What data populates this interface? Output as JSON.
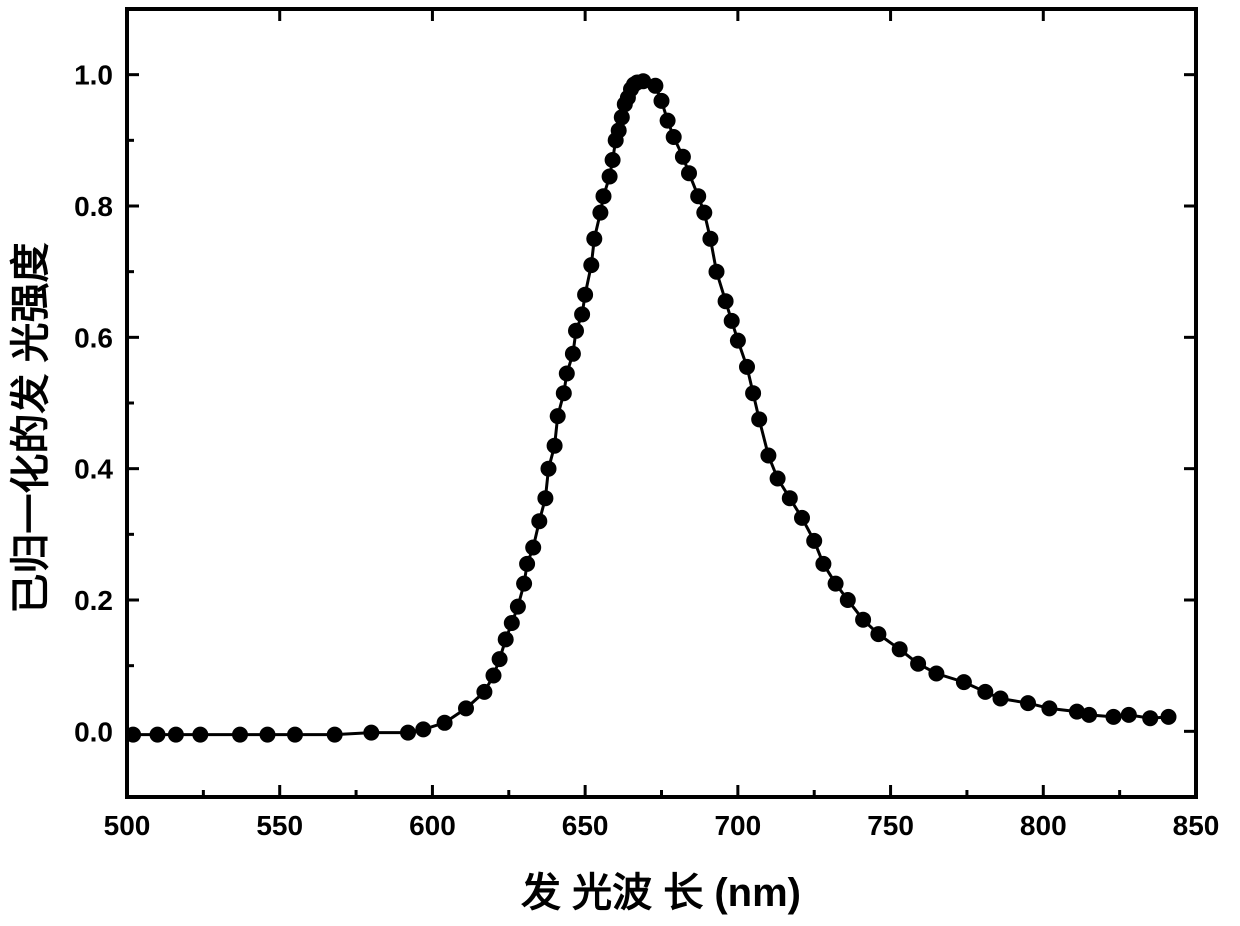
{
  "chart_data": {
    "type": "line",
    "title": "",
    "xlabel": "发 光波 长 (nm)",
    "ylabel": "已归一化的发 光强度",
    "xlim": [
      500,
      850
    ],
    "ylim": [
      -0.1,
      1.1
    ],
    "x_ticks": [
      "500",
      "550",
      "600",
      "650",
      "700",
      "750",
      "800",
      "850"
    ],
    "y_ticks": [
      "0.0",
      "0.2",
      "0.4",
      "0.6",
      "0.8",
      "1.0"
    ],
    "x_tick_values": [
      500,
      550,
      600,
      650,
      700,
      750,
      800,
      850
    ],
    "y_tick_values": [
      0.0,
      0.2,
      0.4,
      0.6,
      0.8,
      1.0
    ],
    "grid": false,
    "colors": {
      "line": "#000000",
      "marker": "#000000"
    },
    "series": [
      {
        "marker": "filled-circle",
        "x": [
          502,
          510,
          516,
          524,
          537,
          546,
          555,
          568,
          580,
          592,
          597,
          604,
          611,
          617,
          620,
          622,
          624,
          626,
          628,
          630,
          631,
          633,
          635,
          637,
          638,
          640,
          641,
          643,
          644,
          646,
          647,
          649,
          650,
          652,
          653,
          655,
          656,
          658,
          659,
          660,
          661,
          662,
          663,
          664,
          665,
          666,
          667,
          669,
          673,
          675,
          677,
          679,
          682,
          684,
          687,
          689,
          691,
          693,
          696,
          698,
          700,
          703,
          705,
          707,
          710,
          713,
          717,
          721,
          725,
          728,
          732,
          736,
          741,
          746,
          753,
          759,
          765,
          774,
          781,
          786,
          795,
          802,
          811,
          815,
          823,
          828,
          835,
          841
        ],
        "y": [
          -0.005,
          -0.005,
          -0.005,
          -0.005,
          -0.005,
          -0.005,
          -0.005,
          -0.005,
          -0.002,
          -0.002,
          0.003,
          0.013,
          0.035,
          0.06,
          0.085,
          0.11,
          0.14,
          0.165,
          0.19,
          0.225,
          0.255,
          0.28,
          0.32,
          0.355,
          0.4,
          0.435,
          0.48,
          0.515,
          0.545,
          0.575,
          0.61,
          0.635,
          0.665,
          0.71,
          0.75,
          0.79,
          0.815,
          0.845,
          0.87,
          0.9,
          0.915,
          0.935,
          0.955,
          0.965,
          0.978,
          0.985,
          0.988,
          0.99,
          0.983,
          0.96,
          0.93,
          0.905,
          0.875,
          0.85,
          0.815,
          0.79,
          0.75,
          0.7,
          0.655,
          0.625,
          0.595,
          0.555,
          0.515,
          0.475,
          0.42,
          0.385,
          0.355,
          0.325,
          0.29,
          0.255,
          0.225,
          0.2,
          0.17,
          0.148,
          0.125,
          0.103,
          0.088,
          0.075,
          0.06,
          0.05,
          0.043,
          0.035,
          0.03,
          0.025,
          0.022,
          0.025,
          0.02,
          0.022
        ]
      }
    ]
  }
}
